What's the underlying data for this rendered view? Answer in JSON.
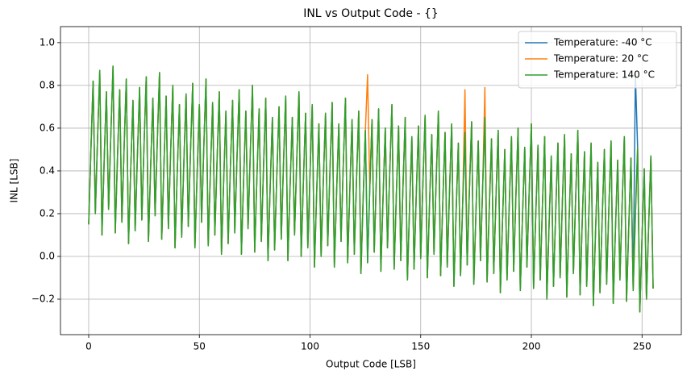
{
  "chart_data": {
    "type": "line",
    "title": "INL vs Output Code - {}",
    "xlabel": "Output Code [LSB]",
    "ylabel": "INL [LSB]",
    "xlim": [
      -12.75,
      267.75
    ],
    "xticks": [
      0,
      50,
      100,
      150,
      200,
      250
    ],
    "ylim": [
      -0.366,
      1.075
    ],
    "yticks": [
      {
        "value": -0.2,
        "label": "−0.2"
      },
      {
        "value": 0,
        "label": "0.0"
      },
      0.2,
      0.4,
      0.6,
      0.8,
      {
        "value": 1,
        "label": "1.0"
      }
    ],
    "grid": true,
    "legend": "upper right",
    "x": [
      0,
      1,
      2,
      3,
      4,
      5,
      6,
      7,
      8,
      9,
      10,
      11,
      12,
      13,
      14,
      15,
      16,
      17,
      18,
      19,
      20,
      21,
      22,
      23,
      24,
      25,
      26,
      27,
      28,
      29,
      30,
      31,
      32,
      33,
      34,
      35,
      36,
      37,
      38,
      39,
      40,
      41,
      42,
      43,
      44,
      45,
      46,
      47,
      48,
      49,
      50,
      51,
      52,
      53,
      54,
      55,
      56,
      57,
      58,
      59,
      60,
      61,
      62,
      63,
      64,
      65,
      66,
      67,
      68,
      69,
      70,
      71,
      72,
      73,
      74,
      75,
      76,
      77,
      78,
      79,
      80,
      81,
      82,
      83,
      84,
      85,
      86,
      87,
      88,
      89,
      90,
      91,
      92,
      93,
      94,
      95,
      96,
      97,
      98,
      99,
      100,
      101,
      102,
      103,
      104,
      105,
      106,
      107,
      108,
      109,
      110,
      111,
      112,
      113,
      114,
      115,
      116,
      117,
      118,
      119,
      120,
      121,
      122,
      123,
      124,
      125,
      126,
      127,
      128,
      129,
      130,
      131,
      132,
      133,
      134,
      135,
      136,
      137,
      138,
      139,
      140,
      141,
      142,
      143,
      144,
      145,
      146,
      147,
      148,
      149,
      150,
      151,
      152,
      153,
      154,
      155,
      156,
      157,
      158,
      159,
      160,
      161,
      162,
      163,
      164,
      165,
      166,
      167,
      168,
      169,
      170,
      171,
      172,
      173,
      174,
      175,
      176,
      177,
      178,
      179,
      180,
      181,
      182,
      183,
      184,
      185,
      186,
      187,
      188,
      189,
      190,
      191,
      192,
      193,
      194,
      195,
      196,
      197,
      198,
      199,
      200,
      201,
      202,
      203,
      204,
      205,
      206,
      207,
      208,
      209,
      210,
      211,
      212,
      213,
      214,
      215,
      216,
      217,
      218,
      219,
      220,
      221,
      222,
      223,
      224,
      225,
      226,
      227,
      228,
      229,
      230,
      231,
      232,
      233,
      234,
      235,
      236,
      237,
      238,
      239,
      240,
      241,
      242,
      243,
      244,
      245,
      246,
      247,
      248,
      249,
      250,
      251,
      252,
      253,
      254,
      255
    ],
    "series": [
      {
        "name": "Temperature: -40 °C",
        "color": "#1f77b4",
        "values": [
          0.15,
          0.5,
          0.82,
          0.2,
          0.55,
          0.87,
          0.1,
          0.45,
          0.77,
          0.22,
          0.57,
          0.89,
          0.11,
          0.46,
          0.78,
          0.16,
          0.51,
          0.83,
          0.06,
          0.41,
          0.73,
          0.12,
          0.47,
          0.79,
          0.17,
          0.52,
          0.84,
          0.07,
          0.42,
          0.74,
          0.19,
          0.54,
          0.86,
          0.08,
          0.43,
          0.75,
          0.13,
          0.48,
          0.8,
          0.04,
          0.39,
          0.71,
          0.09,
          0.44,
          0.76,
          0.14,
          0.49,
          0.81,
          0.04,
          0.39,
          0.71,
          0.16,
          0.51,
          0.83,
          0.05,
          0.4,
          0.72,
          0.1,
          0.45,
          0.77,
          0.01,
          0.36,
          0.68,
          0.06,
          0.41,
          0.73,
          0.11,
          0.46,
          0.78,
          0.01,
          0.36,
          0.68,
          0.13,
          0.48,
          0.8,
          0.02,
          0.37,
          0.69,
          0.07,
          0.42,
          0.74,
          -0.02,
          0.33,
          0.65,
          0.03,
          0.38,
          0.7,
          0.08,
          0.43,
          0.75,
          -0.02,
          0.33,
          0.65,
          0.1,
          0.45,
          0.77,
          0,
          0.35,
          0.67,
          0.04,
          0.39,
          0.71,
          -0.05,
          0.3,
          0.62,
          0,
          0.35,
          0.67,
          0.05,
          0.4,
          0.72,
          -0.05,
          0.3,
          0.62,
          0.07,
          0.42,
          0.74,
          -0.03,
          0.32,
          0.64,
          0.01,
          0.36,
          0.68,
          -0.08,
          0.27,
          0.59,
          -0.03,
          0.32,
          0.64,
          0.02,
          0.37,
          0.69,
          -0.07,
          0.28,
          0.6,
          0.04,
          0.39,
          0.71,
          -0.06,
          0.29,
          0.61,
          -0.02,
          0.33,
          0.65,
          -0.11,
          0.24,
          0.56,
          -0.06,
          0.29,
          0.61,
          -0.01,
          0.34,
          0.66,
          -0.1,
          0.25,
          0.57,
          0.01,
          0.36,
          0.68,
          -0.09,
          0.26,
          0.58,
          -0.05,
          0.3,
          0.62,
          -0.14,
          0.21,
          0.53,
          -0.09,
          0.26,
          0.58,
          -0.04,
          0.31,
          0.63,
          -0.13,
          0.22,
          0.54,
          -0.02,
          0.33,
          0.65,
          -0.12,
          0.23,
          0.55,
          -0.08,
          0.27,
          0.59,
          -0.17,
          0.18,
          0.5,
          -0.11,
          0.24,
          0.56,
          -0.07,
          0.28,
          0.6,
          -0.16,
          0.19,
          0.51,
          -0.05,
          0.3,
          0.62,
          -0.15,
          0.2,
          0.52,
          -0.11,
          0.24,
          0.56,
          -0.2,
          0.15,
          0.47,
          -0.14,
          0.21,
          0.53,
          -0.1,
          0.25,
          0.57,
          -0.19,
          0.16,
          0.48,
          -0.08,
          0.27,
          0.59,
          -0.18,
          0.17,
          0.49,
          -0.14,
          0.21,
          0.53,
          -0.23,
          0.12,
          0.44,
          -0.17,
          0.18,
          0.5,
          -0.13,
          0.22,
          0.54,
          -0.22,
          0.13,
          0.45,
          -0.11,
          0.24,
          0.56,
          -0.21,
          0.14,
          0.46,
          -0.16,
          0.85,
          0.51,
          -0.26,
          0.09,
          0.41,
          -0.2,
          0.15,
          0.47,
          -0.15
        ]
      },
      {
        "name": "Temperature: 20 °C",
        "color": "#ff7f0e",
        "values": [
          0.15,
          0.5,
          0.82,
          0.2,
          0.55,
          0.87,
          0.1,
          0.45,
          0.77,
          0.22,
          0.57,
          0.89,
          0.11,
          0.46,
          0.78,
          0.16,
          0.51,
          0.83,
          0.06,
          0.41,
          0.73,
          0.12,
          0.47,
          0.79,
          0.17,
          0.52,
          0.84,
          0.07,
          0.42,
          0.74,
          0.19,
          0.54,
          0.86,
          0.08,
          0.43,
          0.75,
          0.13,
          0.48,
          0.8,
          0.04,
          0.39,
          0.71,
          0.09,
          0.44,
          0.76,
          0.14,
          0.49,
          0.81,
          0.04,
          0.39,
          0.71,
          0.16,
          0.51,
          0.83,
          0.05,
          0.4,
          0.72,
          0.1,
          0.45,
          0.77,
          0.01,
          0.36,
          0.68,
          0.06,
          0.41,
          0.73,
          0.11,
          0.46,
          0.78,
          0.01,
          0.36,
          0.68,
          0.13,
          0.48,
          0.8,
          0.02,
          0.37,
          0.69,
          0.07,
          0.42,
          0.74,
          -0.02,
          0.33,
          0.65,
          0.03,
          0.38,
          0.7,
          0.08,
          0.43,
          0.75,
          -0.02,
          0.33,
          0.65,
          0.1,
          0.45,
          0.77,
          0,
          0.35,
          0.67,
          0.04,
          0.39,
          0.71,
          -0.05,
          0.3,
          0.62,
          0,
          0.35,
          0.67,
          0.05,
          0.4,
          0.72,
          -0.05,
          0.3,
          0.62,
          0.07,
          0.42,
          0.74,
          -0.03,
          0.32,
          0.64,
          0.01,
          0.36,
          0.68,
          -0.08,
          0.27,
          0.59,
          0.85,
          0.32,
          0.64,
          0.02,
          0.37,
          0.69,
          -0.07,
          0.28,
          0.6,
          0.04,
          0.39,
          0.71,
          -0.06,
          0.29,
          0.61,
          -0.02,
          0.33,
          0.65,
          -0.11,
          0.24,
          0.56,
          -0.06,
          0.29,
          0.61,
          -0.01,
          0.34,
          0.66,
          -0.1,
          0.25,
          0.57,
          0.01,
          0.36,
          0.68,
          -0.09,
          0.26,
          0.58,
          -0.05,
          0.3,
          0.62,
          -0.14,
          0.21,
          0.53,
          -0.09,
          0.26,
          0.78,
          -0.04,
          0.31,
          0.63,
          -0.13,
          0.22,
          0.54,
          -0.02,
          0.33,
          0.79,
          -0.12,
          0.23,
          0.55,
          -0.08,
          0.27,
          0.59,
          -0.17,
          0.18,
          0.5,
          -0.11,
          0.24,
          0.56,
          -0.07,
          0.28,
          0.6,
          -0.16,
          0.19,
          0.51,
          -0.05,
          0.3,
          0.62,
          -0.15,
          0.2,
          0.52,
          -0.11,
          0.24,
          0.56,
          -0.2,
          0.15,
          0.47,
          -0.14,
          0.21,
          0.53,
          -0.1,
          0.25,
          0.57,
          -0.19,
          0.16,
          0.48,
          -0.08,
          0.27,
          0.59,
          -0.18,
          0.17,
          0.49,
          -0.14,
          0.21,
          0.53,
          -0.23,
          0.12,
          0.44,
          -0.17,
          0.18,
          0.5,
          -0.13,
          0.22,
          0.54,
          -0.22,
          0.13,
          0.45,
          -0.11,
          0.24,
          0.56,
          -0.21,
          0.14,
          0.46,
          -0.16,
          0.19,
          0.51,
          -0.26,
          0.09,
          0.41,
          -0.2,
          0.15,
          0.47,
          -0.15
        ]
      },
      {
        "name": "Temperature: 140 °C",
        "color": "#2ca02c",
        "values": [
          0.15,
          0.5,
          0.82,
          0.2,
          0.55,
          0.87,
          0.1,
          0.45,
          0.77,
          0.22,
          0.57,
          0.89,
          0.11,
          0.46,
          0.78,
          0.16,
          0.51,
          0.83,
          0.06,
          0.41,
          0.73,
          0.12,
          0.47,
          0.79,
          0.17,
          0.52,
          0.84,
          0.07,
          0.42,
          0.74,
          0.19,
          0.54,
          0.86,
          0.08,
          0.43,
          0.75,
          0.13,
          0.48,
          0.8,
          0.04,
          0.39,
          0.71,
          0.09,
          0.44,
          0.76,
          0.14,
          0.49,
          0.81,
          0.04,
          0.39,
          0.71,
          0.16,
          0.51,
          0.83,
          0.05,
          0.4,
          0.72,
          0.1,
          0.45,
          0.77,
          0.01,
          0.36,
          0.68,
          0.06,
          0.41,
          0.73,
          0.11,
          0.46,
          0.78,
          0.01,
          0.36,
          0.68,
          0.13,
          0.48,
          0.8,
          0.02,
          0.37,
          0.69,
          0.07,
          0.42,
          0.74,
          -0.02,
          0.33,
          0.65,
          0.03,
          0.38,
          0.7,
          0.08,
          0.43,
          0.75,
          -0.02,
          0.33,
          0.65,
          0.1,
          0.45,
          0.77,
          0,
          0.35,
          0.67,
          0.04,
          0.39,
          0.71,
          -0.05,
          0.3,
          0.62,
          0,
          0.35,
          0.67,
          0.05,
          0.4,
          0.72,
          -0.05,
          0.3,
          0.62,
          0.07,
          0.42,
          0.74,
          -0.03,
          0.32,
          0.64,
          0.01,
          0.36,
          0.68,
          -0.08,
          0.27,
          0.59,
          -0.03,
          0.32,
          0.64,
          0.02,
          0.37,
          0.69,
          -0.07,
          0.28,
          0.6,
          0.04,
          0.39,
          0.71,
          -0.06,
          0.29,
          0.61,
          -0.02,
          0.33,
          0.65,
          -0.11,
          0.24,
          0.56,
          -0.06,
          0.29,
          0.61,
          -0.01,
          0.34,
          0.66,
          -0.1,
          0.25,
          0.57,
          0.01,
          0.36,
          0.68,
          -0.09,
          0.26,
          0.58,
          -0.05,
          0.3,
          0.62,
          -0.14,
          0.21,
          0.53,
          -0.09,
          0.26,
          0.58,
          -0.04,
          0.31,
          0.63,
          -0.13,
          0.22,
          0.54,
          -0.02,
          0.33,
          0.65,
          -0.12,
          0.23,
          0.55,
          -0.08,
          0.27,
          0.59,
          -0.17,
          0.18,
          0.5,
          -0.11,
          0.24,
          0.56,
          -0.07,
          0.28,
          0.6,
          -0.16,
          0.19,
          0.51,
          -0.05,
          0.3,
          0.62,
          -0.15,
          0.2,
          0.52,
          -0.11,
          0.24,
          0.56,
          -0.2,
          0.15,
          0.47,
          -0.14,
          0.21,
          0.53,
          -0.1,
          0.25,
          0.57,
          -0.19,
          0.16,
          0.48,
          -0.08,
          0.27,
          0.59,
          -0.18,
          0.17,
          0.49,
          -0.14,
          0.21,
          0.53,
          -0.23,
          0.12,
          0.44,
          -0.17,
          0.18,
          0.5,
          -0.13,
          0.22,
          0.54,
          -0.22,
          0.13,
          0.45,
          -0.11,
          0.24,
          0.56,
          -0.21,
          0.14,
          0.46,
          -0.16,
          0.19,
          0.51,
          -0.26,
          0.09,
          0.41,
          -0.2,
          0.15,
          0.47,
          -0.15
        ]
      }
    ]
  }
}
